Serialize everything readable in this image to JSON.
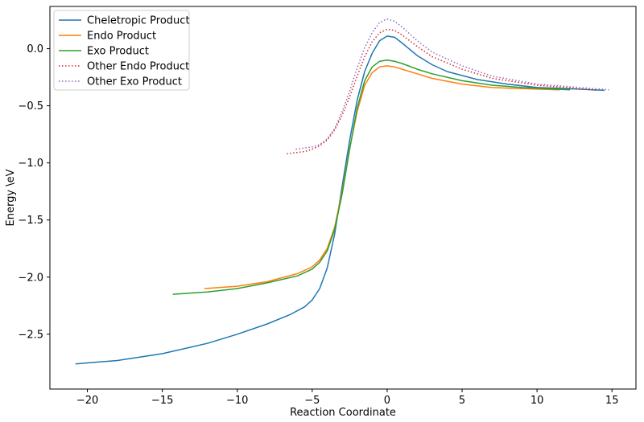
{
  "chart_data": {
    "type": "line",
    "title": "",
    "xlabel": "Reaction Coordinate",
    "ylabel": "Energy \\eV",
    "xlim": [
      -22.5,
      16.6
    ],
    "ylim": [
      -2.98,
      0.37
    ],
    "xticks": [
      -20,
      -15,
      -10,
      -5,
      0,
      5,
      10,
      15
    ],
    "xtick_labels": [
      "−20",
      "−15",
      "−10",
      "−5",
      "0",
      "5",
      "10",
      "15"
    ],
    "yticks": [
      0.0,
      -0.5,
      -1.0,
      -1.5,
      -2.0,
      -2.5
    ],
    "ytick_labels": [
      "0.0",
      "−0.5",
      "−1.0",
      "−1.5",
      "−2.0",
      "−2.5"
    ],
    "grid": false,
    "legend_position": "top-left",
    "series": [
      {
        "name": "Cheletropic Product",
        "color": "#1f77b4",
        "style": "solid",
        "x": [
          -20.8,
          -18,
          -15,
          -12,
          -10,
          -8,
          -6.5,
          -5.5,
          -5,
          -4.5,
          -4,
          -3.5,
          -3,
          -2.5,
          -2,
          -1.5,
          -1,
          -0.5,
          0,
          0.5,
          1,
          2,
          3,
          4,
          6,
          8,
          10,
          12,
          14.5
        ],
        "y": [
          -2.76,
          -2.73,
          -2.67,
          -2.58,
          -2.5,
          -2.41,
          -2.33,
          -2.26,
          -2.2,
          -2.1,
          -1.92,
          -1.62,
          -1.2,
          -0.8,
          -0.45,
          -0.2,
          -0.04,
          0.07,
          0.11,
          0.1,
          0.05,
          -0.06,
          -0.14,
          -0.2,
          -0.27,
          -0.31,
          -0.34,
          -0.35,
          -0.365
        ]
      },
      {
        "name": "Endo Product",
        "color": "#ff7f0e",
        "style": "solid",
        "x": [
          -12.2,
          -10,
          -8,
          -6,
          -5,
          -4.5,
          -4,
          -3.5,
          -3,
          -2.5,
          -2,
          -1.5,
          -1,
          -0.5,
          0,
          0.5,
          1,
          2,
          3,
          5,
          7,
          9,
          11.5
        ],
        "y": [
          -2.1,
          -2.08,
          -2.04,
          -1.97,
          -1.91,
          -1.85,
          -1.75,
          -1.56,
          -1.25,
          -0.87,
          -0.55,
          -0.32,
          -0.21,
          -0.16,
          -0.15,
          -0.16,
          -0.18,
          -0.22,
          -0.26,
          -0.31,
          -0.34,
          -0.35,
          -0.36
        ]
      },
      {
        "name": "Exo Product",
        "color": "#2ca02c",
        "style": "solid",
        "x": [
          -14.3,
          -12,
          -10,
          -8,
          -6,
          -5,
          -4.5,
          -4,
          -3.5,
          -3,
          -2.5,
          -2,
          -1.5,
          -1,
          -0.5,
          0,
          0.5,
          1,
          2,
          3,
          5,
          7,
          9,
          12.2
        ],
        "y": [
          -2.15,
          -2.13,
          -2.1,
          -2.05,
          -1.99,
          -1.93,
          -1.87,
          -1.77,
          -1.58,
          -1.27,
          -0.88,
          -0.52,
          -0.28,
          -0.16,
          -0.11,
          -0.1,
          -0.11,
          -0.13,
          -0.18,
          -0.22,
          -0.28,
          -0.32,
          -0.34,
          -0.36
        ]
      },
      {
        "name": "Other Endo Product",
        "color": "#d62728",
        "style": "dotted",
        "x": [
          -6.7,
          -5.5,
          -5,
          -4.5,
          -4,
          -3.5,
          -3,
          -2.5,
          -2,
          -1.5,
          -1,
          -0.5,
          0,
          0.5,
          1,
          2,
          3,
          5,
          7,
          10,
          14
        ],
        "y": [
          -0.92,
          -0.9,
          -0.88,
          -0.85,
          -0.8,
          -0.71,
          -0.58,
          -0.42,
          -0.24,
          -0.07,
          0.06,
          0.14,
          0.17,
          0.16,
          0.12,
          0.02,
          -0.07,
          -0.18,
          -0.26,
          -0.32,
          -0.365
        ]
      },
      {
        "name": "Other Exo Product",
        "color": "#9467bd",
        "style": "dotted",
        "x": [
          -6.1,
          -5,
          -4.5,
          -4,
          -3.5,
          -3,
          -2.5,
          -2,
          -1.5,
          -1,
          -0.5,
          0,
          0.5,
          1,
          2,
          3,
          5,
          7,
          10,
          14.8
        ],
        "y": [
          -0.88,
          -0.86,
          -0.84,
          -0.79,
          -0.7,
          -0.55,
          -0.37,
          -0.17,
          0.01,
          0.14,
          0.23,
          0.26,
          0.24,
          0.19,
          0.07,
          -0.03,
          -0.15,
          -0.24,
          -0.31,
          -0.36
        ]
      }
    ]
  }
}
